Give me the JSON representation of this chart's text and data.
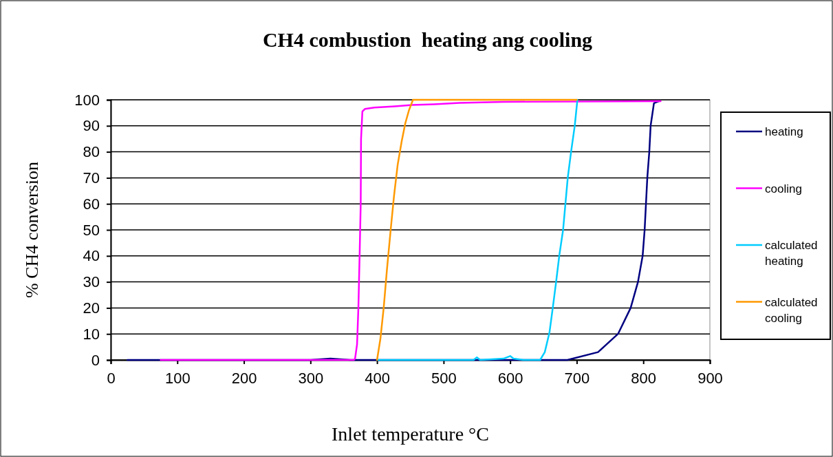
{
  "chart_data": {
    "type": "line",
    "title": "CH4 combustion  heating ang cooling",
    "xlabel": "Inlet temperature °C",
    "ylabel": "% CH4 conversion",
    "xlim": [
      0,
      900
    ],
    "xticks": [
      0,
      100,
      200,
      300,
      400,
      500,
      600,
      700,
      800,
      900
    ],
    "ylim": [
      0,
      100
    ],
    "yticks": [
      0,
      10,
      20,
      30,
      40,
      50,
      60,
      70,
      80,
      90,
      100
    ],
    "grid": "y",
    "legend": "right",
    "marker": "none",
    "line_style": "solid",
    "series": [
      {
        "name": "heating",
        "color": "#000080",
        "x": [
          25,
          290,
          300,
          330,
          360,
          450,
          460,
          630,
          640,
          686,
          732,
          762,
          781,
          792,
          799,
          802,
          804,
          806,
          809,
          811,
          816,
          824
        ],
        "values": [
          0,
          0,
          0,
          0.5,
          0,
          0,
          0,
          0,
          0,
          0,
          3,
          10,
          20,
          30,
          40,
          50,
          60,
          70,
          80,
          90,
          98.7,
          99.5
        ]
      },
      {
        "name": "cooling",
        "color": "#ff00ff",
        "x": [
          75,
          365,
          367,
          370,
          372,
          374,
          375.5,
          376,
          378,
          382,
          396,
          427,
          453,
          486,
          524,
          590,
          826
        ],
        "values": [
          0,
          0,
          0.5,
          6,
          20,
          42,
          60,
          85,
          95.5,
          96.5,
          97,
          97.5,
          98,
          98.3,
          98.8,
          99.2,
          99.5
        ]
      },
      {
        "name": "calculated heating",
        "color": "#00ccff",
        "x": [
          400,
          545,
          550,
          555,
          590,
          600,
          605,
          620,
          640,
          645,
          652,
          659,
          664,
          669,
          674,
          679.5,
          683,
          686.5,
          691.5,
          697,
          701
        ],
        "values": [
          0,
          0,
          1,
          0,
          0.5,
          1.5,
          0.5,
          0,
          0,
          0,
          3,
          10.5,
          20,
          30,
          40.5,
          50,
          60,
          70,
          80,
          90,
          100
        ]
      },
      {
        "name": "calculated cooling",
        "color": "#ff9900",
        "x": [
          400,
          405,
          410,
          415,
          420.5,
          425.5,
          431,
          437,
          442.5,
          448,
          454,
          551,
          700
        ],
        "values": [
          0,
          8,
          20,
          35,
          50,
          63,
          75,
          84,
          91,
          96,
          100,
          100,
          100
        ]
      }
    ]
  }
}
